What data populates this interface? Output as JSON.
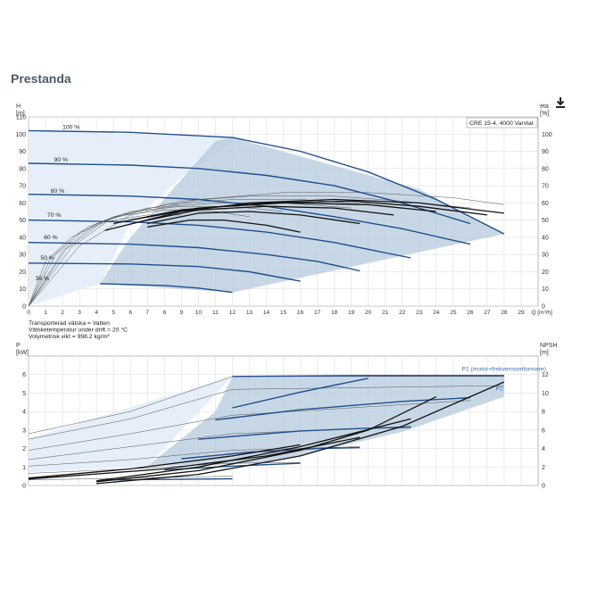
{
  "page": {
    "title": "Prestanda",
    "download_icon": "download-icon"
  },
  "fluid_info": [
    "Transporterad vätska = Vatten",
    "Vätsketemperatur under drift = 20 °C",
    "Volymetrisk vikt = 998.2 kg/m³"
  ],
  "colors": {
    "curve": "#1f4e8c",
    "thin": "#555555",
    "envelope": "#b6c9dc",
    "low_region": "#e3edf8",
    "grid": "#d8d8d8",
    "label_blue": "#3a6fb0"
  },
  "chart_data": [
    {
      "type": "line",
      "legend": "CRE 15-4, 4000 Varvtal",
      "xlabel": "Q [m³/h]",
      "ylabel_left": [
        "H",
        "[m]"
      ],
      "ylabel_right": [
        "eta",
        "[%]"
      ],
      "xlim": [
        0,
        30
      ],
      "ylim": [
        0,
        110
      ],
      "ylim_right": [
        0,
        110
      ],
      "x_ticks": [
        0,
        1,
        2,
        3,
        4,
        5,
        6,
        7,
        8,
        9,
        10,
        11,
        12,
        13,
        14,
        15,
        16,
        17,
        18,
        19,
        20,
        21,
        22,
        23,
        24,
        25,
        26,
        27,
        28,
        29
      ],
      "y_ticks": [
        0,
        10,
        20,
        30,
        40,
        50,
        60,
        70,
        80,
        90,
        100,
        110
      ],
      "y_ticks_right": [
        0,
        10,
        20,
        30,
        40,
        50,
        60,
        70,
        80,
        90,
        100
      ],
      "speed_labels": [
        {
          "label": "100 %",
          "x": 2.0,
          "y": 103
        },
        {
          "label": "90 %",
          "x": 1.5,
          "y": 84
        },
        {
          "label": "80 %",
          "x": 1.3,
          "y": 66
        },
        {
          "label": "70 %",
          "x": 1.1,
          "y": 52
        },
        {
          "label": "60 %",
          "x": 0.9,
          "y": 39
        },
        {
          "label": "50 %",
          "x": 0.7,
          "y": 27
        },
        {
          "label": "36 %",
          "x": 0.4,
          "y": 15
        }
      ],
      "envelope": [
        [
          4.2,
          13
        ],
        [
          12,
          8
        ],
        [
          28,
          42
        ],
        [
          23,
          68
        ],
        [
          12,
          98
        ],
        [
          11,
          96
        ],
        [
          8.5,
          68
        ],
        [
          6,
          40
        ]
      ],
      "low_region": [
        [
          0,
          102
        ],
        [
          12,
          98
        ],
        [
          12,
          95
        ],
        [
          9,
          75
        ],
        [
          6,
          48
        ],
        [
          4.2,
          13
        ],
        [
          0,
          0
        ]
      ],
      "head_curves": [
        {
          "name": "100 %",
          "points": [
            [
              0,
              102
            ],
            [
              6,
              101
            ],
            [
              12,
              98
            ],
            [
              16,
              90
            ],
            [
              20,
              78
            ],
            [
              24,
              62
            ],
            [
              28,
              42
            ]
          ]
        },
        {
          "name": "90 %",
          "points": [
            [
              0,
              83
            ],
            [
              6,
              82
            ],
            [
              10,
              80
            ],
            [
              14,
              76
            ],
            [
              18,
              70
            ],
            [
              22,
              60
            ],
            [
              26,
              48
            ]
          ]
        },
        {
          "name": "80 %",
          "points": [
            [
              0,
              65
            ],
            [
              6,
              64
            ],
            [
              10,
              62
            ],
            [
              14,
              58
            ],
            [
              18,
              52
            ],
            [
              22,
              45
            ],
            [
              26,
              36
            ]
          ]
        },
        {
          "name": "70 %",
          "points": [
            [
              0,
              50
            ],
            [
              6,
              49
            ],
            [
              10,
              47
            ],
            [
              14,
              43
            ],
            [
              18,
              37
            ],
            [
              22.5,
              28
            ]
          ]
        },
        {
          "name": "60 %",
          "points": [
            [
              0,
              37
            ],
            [
              6,
              36
            ],
            [
              10,
              34
            ],
            [
              14,
              30
            ],
            [
              17,
              26
            ],
            [
              19.5,
              20.5
            ]
          ]
        },
        {
          "name": "50 %",
          "points": [
            [
              0,
              25
            ],
            [
              6,
              24.5
            ],
            [
              10,
              23
            ],
            [
              13,
              20
            ],
            [
              16,
              14.5
            ]
          ]
        },
        {
          "name": "36 %",
          "points": [
            [
              4.2,
              13
            ],
            [
              8,
              12
            ],
            [
              10,
              10.5
            ],
            [
              12,
              8
            ]
          ]
        }
      ],
      "efficiency_curves": [
        {
          "points": [
            [
              4.5,
              44
            ],
            [
              9,
              55
            ],
            [
              13,
              60
            ],
            [
              18,
              62
            ],
            [
              23,
              60
            ],
            [
              28,
              54
            ]
          ]
        },
        {
          "points": [
            [
              5,
              48
            ],
            [
              9,
              56
            ],
            [
              14,
              60
            ],
            [
              19,
              61
            ],
            [
              23,
              58
            ],
            [
              27,
              53
            ]
          ]
        },
        {
          "points": [
            [
              6,
              50
            ],
            [
              10,
              57
            ],
            [
              15,
              60
            ],
            [
              20,
              59
            ],
            [
              24,
              55
            ]
          ]
        },
        {
          "points": [
            [
              6.5,
              49
            ],
            [
              10,
              56
            ],
            [
              14,
              58
            ],
            [
              18,
              57
            ],
            [
              21.5,
              53
            ]
          ]
        },
        {
          "points": [
            [
              7,
              48
            ],
            [
              10,
              54
            ],
            [
              13,
              55
            ],
            [
              16,
              53
            ],
            [
              19.5,
              48
            ]
          ]
        },
        {
          "points": [
            [
              7,
              46
            ],
            [
              9.5,
              50
            ],
            [
              11.5,
              50
            ],
            [
              14,
              47
            ],
            [
              16,
              43
            ]
          ]
        }
      ],
      "thin_efficiency_curves": [
        {
          "points": [
            [
              0,
              0
            ],
            [
              3,
              35
            ],
            [
              6,
              53
            ],
            [
              10,
              62
            ],
            [
              15,
              66
            ],
            [
              20,
              66
            ],
            [
              25,
              63
            ],
            [
              28,
              59
            ]
          ]
        },
        {
          "points": [
            [
              0,
              0
            ],
            [
              2.5,
              34
            ],
            [
              5,
              52
            ],
            [
              9,
              61
            ],
            [
              13,
              64
            ],
            [
              18,
              64
            ],
            [
              22,
              61
            ],
            [
              26,
              57
            ]
          ]
        },
        {
          "points": [
            [
              0,
              0
            ],
            [
              2.2,
              33
            ],
            [
              4.5,
              50
            ],
            [
              8,
              59
            ],
            [
              12,
              62
            ],
            [
              16,
              62
            ],
            [
              20,
              59
            ],
            [
              24,
              55
            ]
          ]
        },
        {
          "points": [
            [
              0,
              0
            ],
            [
              2,
              32
            ],
            [
              4,
              48
            ],
            [
              7,
              57
            ],
            [
              11,
              60
            ],
            [
              15,
              60
            ],
            [
              19,
              57
            ]
          ]
        },
        {
          "points": [
            [
              0,
              0
            ],
            [
              1.6,
              30
            ],
            [
              3.5,
              46
            ],
            [
              6,
              55
            ],
            [
              9,
              58
            ],
            [
              12,
              58
            ],
            [
              15,
              55
            ]
          ]
        },
        {
          "points": [
            [
              0,
              0
            ],
            [
              1.3,
              28
            ],
            [
              3,
              43
            ],
            [
              5,
              52
            ],
            [
              8,
              56
            ],
            [
              11,
              55
            ],
            [
              13,
              52
            ]
          ]
        },
        {
          "points": [
            [
              0,
              0
            ],
            [
              1,
              26
            ],
            [
              2.5,
              40
            ],
            [
              4.5,
              49
            ],
            [
              7,
              53
            ],
            [
              9,
              53
            ]
          ]
        }
      ]
    },
    {
      "type": "line",
      "xlabel": "",
      "ylabel_left": [
        "P",
        "[kW]"
      ],
      "ylabel_right": [
        "NPSH",
        "[m]"
      ],
      "xlim": [
        0,
        30
      ],
      "ylim": [
        0,
        7
      ],
      "ylim_right": [
        0,
        14
      ],
      "y_ticks": [
        0,
        1,
        2,
        3,
        4,
        5,
        6
      ],
      "y_ticks_right": [
        0,
        2,
        4,
        6,
        8,
        10,
        12
      ],
      "series_labels": [
        {
          "label": "P1 (motor+frekvensomformare)",
          "x": 25.5,
          "y": 6.2
        },
        {
          "label": "P2",
          "x": 27.5,
          "y": 5.15
        }
      ],
      "envelope": [
        [
          12,
          5.9
        ],
        [
          28,
          5.9
        ],
        [
          28,
          4.8
        ],
        [
          22,
          2.9
        ],
        [
          14,
          1.2
        ],
        [
          7,
          1.05
        ],
        [
          11,
          4.0
        ]
      ],
      "low_region": [
        [
          0,
          2.55
        ],
        [
          12,
          5.9
        ],
        [
          7,
          1.05
        ],
        [
          0,
          0.7
        ]
      ],
      "power_curves": [
        {
          "points": [
            [
              12,
              5.9
            ],
            [
              20,
              5.95
            ],
            [
              28,
              5.95
            ]
          ]
        },
        {
          "points": [
            [
              12,
              4.2
            ],
            [
              16,
              5.05
            ],
            [
              20,
              5.8
            ]
          ]
        },
        {
          "points": [
            [
              11,
              3.55
            ],
            [
              16,
              4.1
            ],
            [
              22,
              4.55
            ],
            [
              26,
              4.75
            ]
          ]
        },
        {
          "points": [
            [
              10,
              2.5
            ],
            [
              16,
              2.95
            ],
            [
              20,
              3.1
            ],
            [
              22.5,
              3.15
            ]
          ]
        },
        {
          "points": [
            [
              9,
              1.45
            ],
            [
              13,
              1.8
            ],
            [
              17,
              2.0
            ],
            [
              19.5,
              2.05
            ]
          ]
        },
        {
          "points": [
            [
              8,
              0.85
            ],
            [
              12,
              1.05
            ],
            [
              16,
              1.2
            ]
          ]
        },
        {
          "points": [
            [
              4.2,
              0.3
            ],
            [
              8,
              0.33
            ],
            [
              12,
              0.36
            ]
          ]
        }
      ],
      "thin_power_curves": [
        {
          "points": [
            [
              0,
              2.8
            ],
            [
              6,
              4.0
            ],
            [
              12,
              5.9
            ],
            [
              28,
              5.9
            ]
          ]
        },
        {
          "points": [
            [
              0,
              2.5
            ],
            [
              6,
              3.6
            ],
            [
              12,
              5.2
            ],
            [
              28,
              5.4
            ]
          ]
        },
        {
          "points": [
            [
              0,
              1.9
            ],
            [
              6,
              2.8
            ],
            [
              12,
              3.8
            ],
            [
              26,
              4.6
            ]
          ]
        },
        {
          "points": [
            [
              0,
              1.4
            ],
            [
              6,
              2.1
            ],
            [
              12,
              2.8
            ],
            [
              22.5,
              3.2
            ]
          ]
        },
        {
          "points": [
            [
              0,
              1.05
            ],
            [
              6,
              1.4
            ],
            [
              12,
              1.9
            ],
            [
              19.5,
              2.1
            ]
          ]
        },
        {
          "points": [
            [
              0,
              0.65
            ],
            [
              6,
              0.9
            ],
            [
              12,
              1.2
            ],
            [
              16,
              1.25
            ]
          ]
        },
        {
          "points": [
            [
              0,
              0.3
            ],
            [
              6,
              0.4
            ],
            [
              12,
              0.5
            ]
          ]
        }
      ],
      "npsh_curves": [
        {
          "points": [
            [
              4,
              0.1
            ],
            [
              10,
              0.6
            ],
            [
              16,
              1.6
            ],
            [
              22,
              3.2
            ],
            [
              28,
              5.6
            ]
          ]
        },
        {
          "points": [
            [
              4,
              0.2
            ],
            [
              10,
              0.8
            ],
            [
              16,
              1.9
            ],
            [
              20,
              3.0
            ],
            [
              24,
              4.8
            ]
          ]
        },
        {
          "points": [
            [
              4,
              0.25
            ],
            [
              10,
              1.0
            ],
            [
              16,
              2.1
            ],
            [
              22.5,
              3.6
            ]
          ]
        },
        {
          "points": [
            [
              0,
              0.35
            ],
            [
              8,
              0.9
            ],
            [
              14,
              1.6
            ],
            [
              19.5,
              2.6
            ]
          ]
        },
        {
          "points": [
            [
              0,
              0.4
            ],
            [
              6,
              0.9
            ],
            [
              12,
              1.6
            ],
            [
              16,
              2.2
            ]
          ]
        }
      ]
    }
  ]
}
